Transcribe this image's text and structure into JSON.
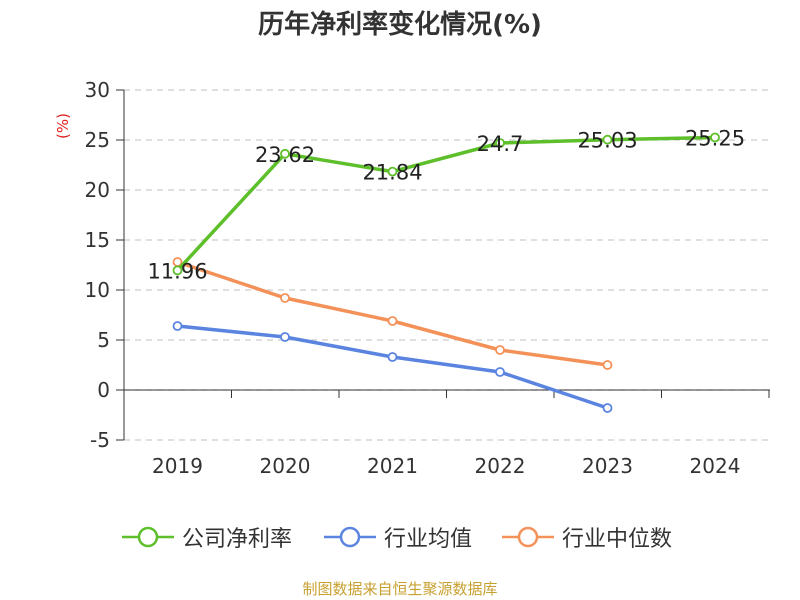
{
  "title": "历年净利率变化情况(%)",
  "source": "制图数据来自恒生聚源数据库",
  "colors": {
    "company": "#5dbf2a",
    "industry_avg": "#5b84e0",
    "industry_median": "#f39158"
  },
  "chart_data": {
    "type": "line",
    "title": "历年净利率变化情况(%)",
    "xlabel": "",
    "ylabel": "(%)",
    "ylim": [
      -5,
      30
    ],
    "yticks": [
      -5,
      0,
      5,
      10,
      15,
      20,
      25,
      30
    ],
    "grid": true,
    "legend_position": "bottom",
    "categories": [
      "2019",
      "2020",
      "2021",
      "2022",
      "2023",
      "2024"
    ],
    "series": [
      {
        "name": "公司净利率",
        "values": [
          11.96,
          23.62,
          21.84,
          24.7,
          25.03,
          25.25
        ],
        "labels": [
          "11.96",
          "23.62",
          "21.84",
          "24.7",
          "25.03",
          "25.25"
        ]
      },
      {
        "name": "行业均值",
        "values": [
          6.4,
          5.3,
          3.3,
          1.8,
          -1.8,
          null
        ]
      },
      {
        "name": "行业中位数",
        "values": [
          12.8,
          9.2,
          6.9,
          4.0,
          2.5,
          null
        ]
      }
    ]
  }
}
